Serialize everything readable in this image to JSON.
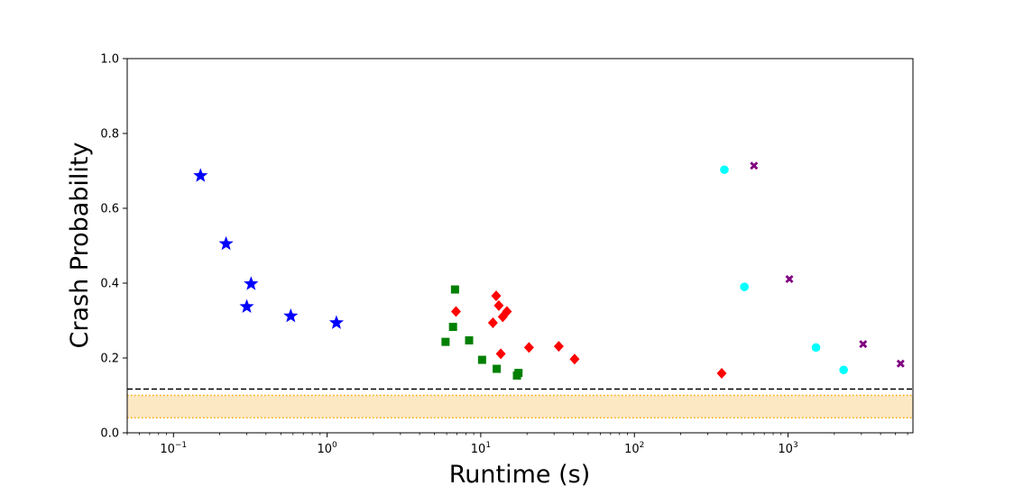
{
  "chart_data": {
    "type": "scatter",
    "title": "",
    "xlabel": "Runtime (s)",
    "ylabel": "Crash Probability",
    "xscale": "log",
    "xlim": [
      0.05,
      6500
    ],
    "ylim": [
      0.0,
      1.0
    ],
    "grid": false,
    "legend": "none",
    "x_ticks": [
      {
        "value": 0.1,
        "base": "10",
        "exp": "−1"
      },
      {
        "value": 1,
        "base": "10",
        "exp": "0"
      },
      {
        "value": 10,
        "base": "10",
        "exp": "1"
      },
      {
        "value": 100,
        "base": "10",
        "exp": "2"
      },
      {
        "value": 1000,
        "base": "10",
        "exp": "3"
      }
    ],
    "y_ticks": [
      {
        "value": 0.0,
        "label": "0.0"
      },
      {
        "value": 0.2,
        "label": "0.2"
      },
      {
        "value": 0.4,
        "label": "0.4"
      },
      {
        "value": 0.6,
        "label": "0.6"
      },
      {
        "value": 0.8,
        "label": "0.8"
      },
      {
        "value": 1.0,
        "label": "1.0"
      }
    ],
    "reference_line": {
      "y": 0.117,
      "color": "#000000",
      "style": "dashed"
    },
    "reference_band": {
      "y_low": 0.04,
      "y_high": 0.1,
      "fill": "#fde8c4",
      "line_color": "#ffa500",
      "style": "dotted"
    },
    "series": [
      {
        "marker": "star",
        "color": "#0000ff",
        "points": [
          {
            "x": 0.15,
            "y": 0.687
          },
          {
            "x": 0.22,
            "y": 0.505
          },
          {
            "x": 0.32,
            "y": 0.398
          },
          {
            "x": 0.3,
            "y": 0.337
          },
          {
            "x": 0.58,
            "y": 0.312
          },
          {
            "x": 1.15,
            "y": 0.294
          }
        ]
      },
      {
        "marker": "square",
        "color": "#008000",
        "points": [
          {
            "x": 6.8,
            "y": 0.383
          },
          {
            "x": 6.6,
            "y": 0.283
          },
          {
            "x": 5.9,
            "y": 0.243
          },
          {
            "x": 8.4,
            "y": 0.247
          },
          {
            "x": 10.2,
            "y": 0.195
          },
          {
            "x": 12.7,
            "y": 0.171
          },
          {
            "x": 17.6,
            "y": 0.16
          },
          {
            "x": 17.2,
            "y": 0.153
          }
        ]
      },
      {
        "marker": "diamond",
        "color": "#ff0000",
        "points": [
          {
            "x": 12.6,
            "y": 0.366
          },
          {
            "x": 13.1,
            "y": 0.34
          },
          {
            "x": 6.9,
            "y": 0.324
          },
          {
            "x": 14.8,
            "y": 0.324
          },
          {
            "x": 13.9,
            "y": 0.31
          },
          {
            "x": 12.0,
            "y": 0.294
          },
          {
            "x": 13.5,
            "y": 0.211
          },
          {
            "x": 20.6,
            "y": 0.228
          },
          {
            "x": 32.2,
            "y": 0.231
          },
          {
            "x": 40.8,
            "y": 0.197
          },
          {
            "x": 370,
            "y": 0.159
          }
        ]
      },
      {
        "marker": "circle",
        "color": "#00ffff",
        "points": [
          {
            "x": 385,
            "y": 0.703
          },
          {
            "x": 520,
            "y": 0.39
          },
          {
            "x": 1520,
            "y": 0.228
          },
          {
            "x": 2300,
            "y": 0.168
          }
        ]
      },
      {
        "marker": "x",
        "color": "#800080",
        "points": [
          {
            "x": 600,
            "y": 0.714
          },
          {
            "x": 1020,
            "y": 0.411
          },
          {
            "x": 3080,
            "y": 0.237
          },
          {
            "x": 5400,
            "y": 0.185
          }
        ]
      }
    ]
  }
}
